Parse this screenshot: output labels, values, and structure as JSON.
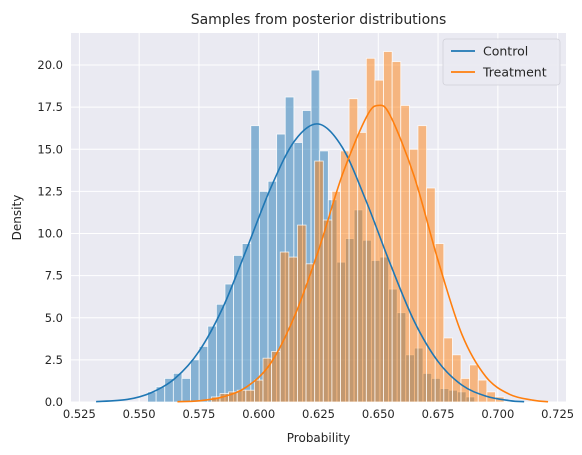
{
  "chart_data": {
    "type": "histogram",
    "title": "Samples from posterior distributions",
    "xlabel": "Probability",
    "ylabel": "Density",
    "xlim": [
      0.5215,
      0.7285
    ],
    "ylim": [
      0,
      21.9
    ],
    "xticks": [
      0.525,
      0.55,
      0.575,
      0.6,
      0.625,
      0.65,
      0.675,
      0.7,
      0.725
    ],
    "xtick_labels": [
      "0.525",
      "0.550",
      "0.575",
      "0.600",
      "0.625",
      "0.650",
      "0.675",
      "0.700",
      "0.725"
    ],
    "yticks": [
      0,
      2.5,
      5,
      7.5,
      10,
      12.5,
      15,
      17.5,
      20
    ],
    "ytick_labels": [
      "0.0",
      "2.5",
      "5.0",
      "7.5",
      "10.0",
      "12.5",
      "15.0",
      "17.5",
      "20.0"
    ],
    "grid": true,
    "background": "#eaeaf2",
    "legend": {
      "position": "top-right",
      "entries": [
        "Control",
        "Treatment"
      ]
    },
    "series": [
      {
        "name": "Control",
        "color": "#1f77b4",
        "hist": {
          "bin_edges": [
            0.5535,
            0.5571,
            0.5607,
            0.5643,
            0.5679,
            0.5715,
            0.5751,
            0.5787,
            0.5823,
            0.5859,
            0.5895,
            0.5931,
            0.5967,
            0.6003,
            0.6039,
            0.6075,
            0.6111,
            0.6147,
            0.6183,
            0.6219,
            0.6255,
            0.6291,
            0.6327,
            0.6363,
            0.6399,
            0.6435,
            0.6471,
            0.6507,
            0.6543,
            0.6579,
            0.6615,
            0.6651,
            0.6687,
            0.6723,
            0.6759,
            0.6795,
            0.6831,
            0.6867,
            0.6903
          ],
          "densities": [
            0.6,
            0.9,
            1.4,
            1.7,
            1.4,
            2.5,
            3.3,
            4.5,
            5.8,
            7.0,
            8.7,
            9.4,
            16.4,
            12.5,
            13.1,
            15.9,
            18.1,
            15.4,
            17.3,
            19.7,
            14.9,
            12.0,
            8.3,
            9.7,
            11.4,
            9.6,
            8.4,
            8.6,
            6.7,
            5.3,
            2.8,
            3.2,
            1.7,
            1.4,
            0.8,
            0.7,
            0.6,
            0.3
          ]
        },
        "kde": {
          "x": [
            0.532,
            0.545,
            0.555,
            0.565,
            0.575,
            0.585,
            0.595,
            0.605,
            0.615,
            0.625,
            0.635,
            0.645,
            0.655,
            0.665,
            0.675,
            0.685,
            0.695,
            0.705,
            0.711
          ],
          "y": [
            0.02,
            0.15,
            0.55,
            1.4,
            3.0,
            5.6,
            9.1,
            12.7,
            15.5,
            16.5,
            15.1,
            11.9,
            8.2,
            4.8,
            2.4,
            1.0,
            0.35,
            0.08,
            0.02
          ]
        }
      },
      {
        "name": "Treatment",
        "color": "#ff7f0e",
        "hist": {
          "bin_edges": [
            0.5802,
            0.5838,
            0.5874,
            0.591,
            0.5946,
            0.5982,
            0.6018,
            0.6054,
            0.609,
            0.6126,
            0.6162,
            0.6198,
            0.6234,
            0.627,
            0.6306,
            0.6342,
            0.6378,
            0.6414,
            0.645,
            0.6486,
            0.6522,
            0.6558,
            0.6594,
            0.663,
            0.6666,
            0.6702,
            0.6738,
            0.6774,
            0.681,
            0.6846,
            0.6882,
            0.6918,
            0.6954,
            0.699,
            0.7026
          ],
          "densities": [
            0.3,
            0.5,
            0.6,
            0.7,
            0.7,
            1.3,
            2.6,
            3.0,
            8.9,
            8.6,
            10.5,
            8.2,
            14.3,
            10.8,
            12.5,
            14.9,
            18.0,
            16.0,
            20.4,
            19.1,
            20.8,
            20.2,
            17.6,
            15.0,
            16.4,
            12.7,
            9.4,
            3.8,
            2.8,
            1.4,
            2.2,
            1.3,
            0.6,
            0.3
          ]
        },
        "kde": {
          "x": [
            0.566,
            0.575,
            0.585,
            0.595,
            0.605,
            0.615,
            0.625,
            0.635,
            0.645,
            0.65,
            0.655,
            0.665,
            0.675,
            0.685,
            0.695,
            0.705,
            0.715,
            0.721
          ],
          "y": [
            0.02,
            0.07,
            0.3,
            0.9,
            2.3,
            5.1,
            9.0,
            13.5,
            16.9,
            17.6,
            17.0,
            13.4,
            8.4,
            4.0,
            1.5,
            0.45,
            0.1,
            0.02
          ]
        }
      }
    ]
  }
}
